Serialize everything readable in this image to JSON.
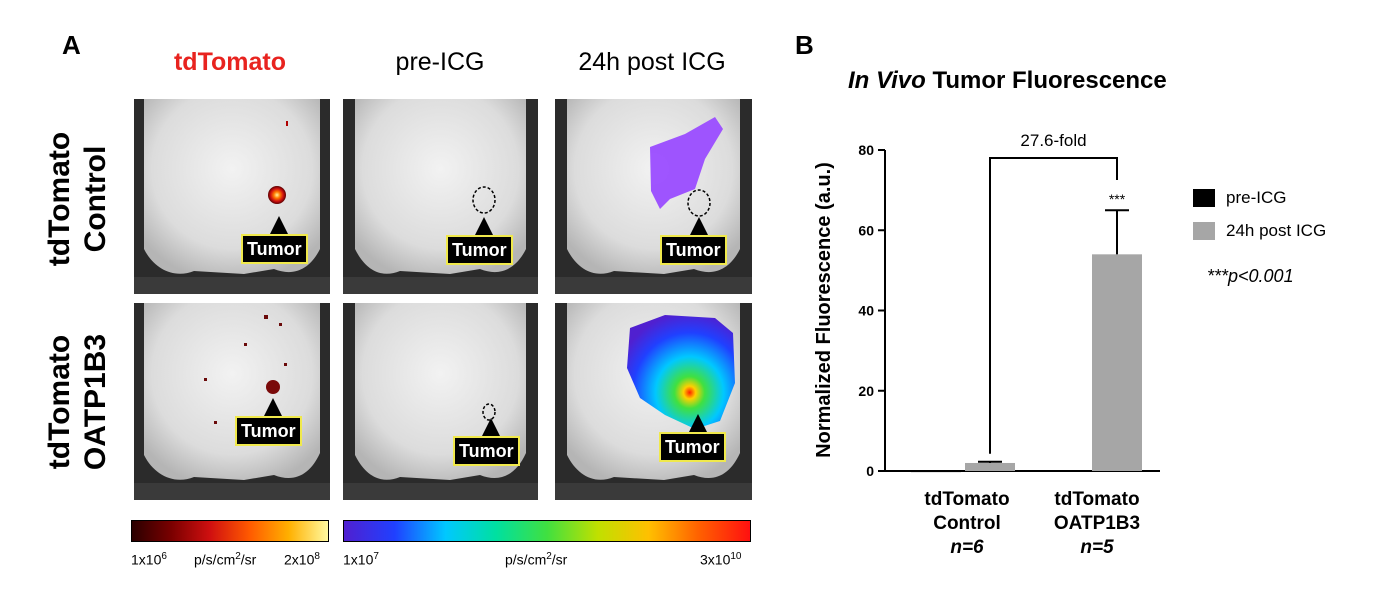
{
  "panel_a": {
    "letter": "A",
    "columns": [
      "tdTomato",
      "pre-ICG",
      "24h post ICG"
    ],
    "rows": [
      {
        "line1": "tdTomato",
        "line2": "Control"
      },
      {
        "line1": "tdTomato",
        "line2": "OATP1B3"
      }
    ],
    "tumor_label": "Tumor",
    "scale1": {
      "min": "1x10",
      "min_exp": "6",
      "unit": "p/s/cm",
      "unit_exp": "2",
      "unit_tail": "/sr",
      "max": "2x10",
      "max_exp": "8"
    },
    "scale2": {
      "min": "1x10",
      "min_exp": "7",
      "unit": "p/s/cm",
      "unit_exp": "2",
      "unit_tail": "/sr",
      "max": "3x10",
      "max_exp": "10"
    },
    "colors": {
      "red_label": "#e8231f",
      "tumor_border": "#f0e94c"
    }
  },
  "panel_b": {
    "letter": "B",
    "title_italic": "In Vivo",
    "title_rest": " Tumor Fluorescence",
    "significance_note": "***p<0.001",
    "fold_label": "27.6-fold",
    "star_label": "***",
    "groups": [
      {
        "line1": "tdTomato",
        "line2": "Control",
        "n": "n=6"
      },
      {
        "line1": "tdTomato",
        "line2": "OATP1B3",
        "n": "n=5"
      }
    ]
  },
  "chart_data": {
    "type": "bar",
    "title": "In Vivo Tumor Fluorescence",
    "xlabel": "",
    "ylabel": "Normalized Fluorescence (a.u.)",
    "ylim": [
      0,
      80
    ],
    "yticks": [
      0,
      20,
      40,
      60,
      80
    ],
    "categories": [
      "tdTomato Control",
      "tdTomato OATP1B3"
    ],
    "series": [
      {
        "name": "pre-ICG",
        "color": "#000000",
        "values": [
          0.1,
          0.2
        ],
        "errors": [
          0,
          0
        ]
      },
      {
        "name": "24h post ICG",
        "color": "#a6a6a6",
        "values": [
          2.0,
          54.0
        ],
        "errors": [
          0.3,
          11.0
        ]
      }
    ],
    "legend": "right",
    "annotations": [
      "27.6-fold",
      "***"
    ]
  }
}
